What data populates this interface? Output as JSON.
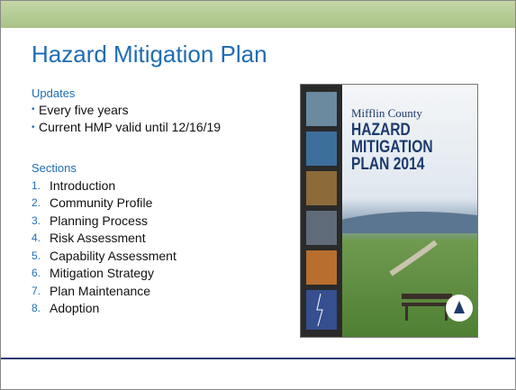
{
  "header": {
    "title": "Hazard Mitigation Plan"
  },
  "updates": {
    "heading": "Updates",
    "items": [
      "Every five years",
      "Current HMP valid until 12/16/19"
    ]
  },
  "sections": {
    "heading": "Sections",
    "items": [
      {
        "number": "1.",
        "label": "Introduction"
      },
      {
        "number": "2.",
        "label": "Community Profile"
      },
      {
        "number": "3.",
        "label": "Planning Process"
      },
      {
        "number": "4.",
        "label": "Risk Assessment"
      },
      {
        "number": "5.",
        "label": "Capability Assessment"
      },
      {
        "number": "6.",
        "label": "Mitigation Strategy"
      },
      {
        "number": "7.",
        "label": "Plan Maintenance"
      },
      {
        "number": "8.",
        "label": "Adoption"
      }
    ]
  },
  "cover": {
    "county": "Mifflin County",
    "title_lines": [
      "HAZARD",
      "MITIGATION",
      "PLAN 2014"
    ]
  }
}
